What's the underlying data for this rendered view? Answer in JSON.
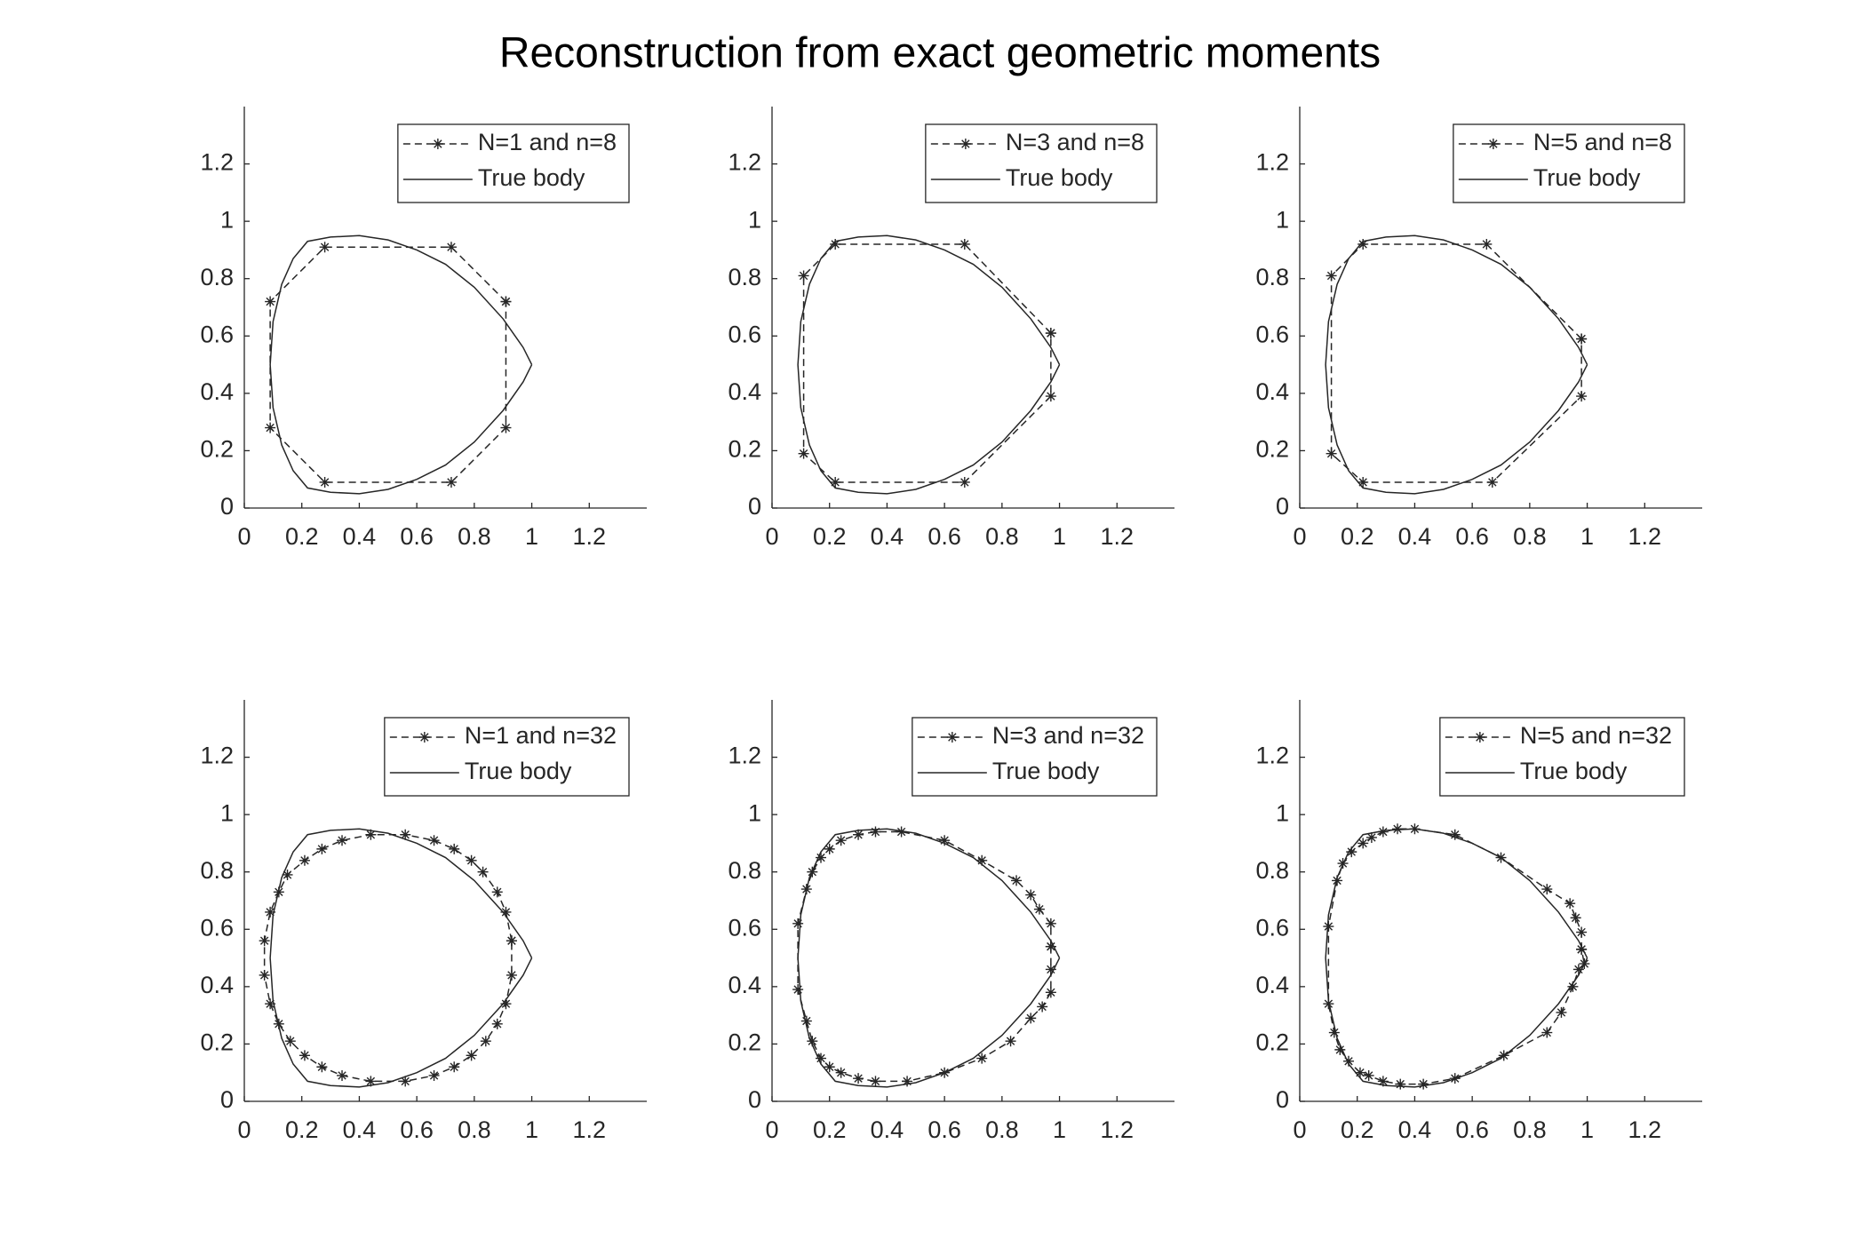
{
  "title": "Reconstruction from exact geometric moments",
  "chart_data": [
    {
      "type": "line",
      "xlim": [
        0,
        1.4
      ],
      "ylim": [
        0,
        1.4
      ],
      "xticks": [
        0,
        0.2,
        0.4,
        0.6,
        0.8,
        1,
        1.2
      ],
      "yticks": [
        0,
        0.2,
        0.4,
        0.6,
        0.8,
        1,
        1.2
      ],
      "legend": "upper right",
      "series": [
        {
          "name": "N=1 and n=8",
          "color": "#262626",
          "line_style": "dashed",
          "marker": "*",
          "x": [
            0.91,
            0.72,
            0.28,
            0.09,
            0.09,
            0.28,
            0.72,
            0.91,
            0.91
          ],
          "values": [
            0.72,
            0.91,
            0.91,
            0.72,
            0.28,
            0.09,
            0.09,
            0.28,
            0.72
          ]
        },
        {
          "name": "True body",
          "color": "#262626",
          "line_style": "solid",
          "x": [
            1,
            0.97,
            0.9,
            0.8,
            0.7,
            0.6,
            0.5,
            0.4,
            0.3,
            0.22,
            0.17,
            0.13,
            0.1,
            0.09,
            0.1,
            0.13,
            0.17,
            0.22,
            0.3,
            0.4,
            0.5,
            0.6,
            0.7,
            0.8,
            0.9,
            0.97,
            1
          ],
          "values": [
            0.5,
            0.56,
            0.66,
            0.77,
            0.85,
            0.9,
            0.935,
            0.95,
            0.945,
            0.93,
            0.87,
            0.78,
            0.65,
            0.5,
            0.35,
            0.22,
            0.13,
            0.07,
            0.055,
            0.05,
            0.065,
            0.1,
            0.15,
            0.23,
            0.34,
            0.44,
            0.5
          ]
        }
      ]
    },
    {
      "type": "line",
      "xlim": [
        0,
        1.4
      ],
      "ylim": [
        0,
        1.4
      ],
      "xticks": [
        0,
        0.2,
        0.4,
        0.6,
        0.8,
        1,
        1.2
      ],
      "yticks": [
        0,
        0.2,
        0.4,
        0.6,
        0.8,
        1,
        1.2
      ],
      "legend": "upper right",
      "series": [
        {
          "name": "N=3 and n=8",
          "color": "#262626",
          "line_style": "dashed",
          "marker": "*",
          "x": [
            0.97,
            0.67,
            0.22,
            0.11,
            0.11,
            0.22,
            0.67,
            0.97,
            0.97
          ],
          "values": [
            0.61,
            0.92,
            0.92,
            0.81,
            0.19,
            0.09,
            0.09,
            0.39,
            0.61
          ]
        },
        {
          "name": "True body",
          "color": "#262626",
          "line_style": "solid",
          "x": [
            1,
            0.97,
            0.9,
            0.8,
            0.7,
            0.6,
            0.5,
            0.4,
            0.3,
            0.22,
            0.17,
            0.13,
            0.1,
            0.09,
            0.1,
            0.13,
            0.17,
            0.22,
            0.3,
            0.4,
            0.5,
            0.6,
            0.7,
            0.8,
            0.9,
            0.97,
            1
          ],
          "values": [
            0.5,
            0.56,
            0.66,
            0.77,
            0.85,
            0.9,
            0.935,
            0.95,
            0.945,
            0.93,
            0.87,
            0.78,
            0.65,
            0.5,
            0.35,
            0.22,
            0.13,
            0.07,
            0.055,
            0.05,
            0.065,
            0.1,
            0.15,
            0.23,
            0.34,
            0.44,
            0.5
          ]
        }
      ]
    },
    {
      "type": "line",
      "xlim": [
        0,
        1.4
      ],
      "ylim": [
        0,
        1.4
      ],
      "xticks": [
        0,
        0.2,
        0.4,
        0.6,
        0.8,
        1,
        1.2
      ],
      "yticks": [
        0,
        0.2,
        0.4,
        0.6,
        0.8,
        1,
        1.2
      ],
      "legend": "upper right",
      "series": [
        {
          "name": "N=5 and n=8",
          "color": "#262626",
          "line_style": "dashed",
          "marker": "*",
          "x": [
            0.98,
            0.65,
            0.22,
            0.11,
            0.11,
            0.22,
            0.67,
            0.98,
            0.98
          ],
          "values": [
            0.59,
            0.92,
            0.92,
            0.81,
            0.19,
            0.09,
            0.09,
            0.39,
            0.59
          ]
        },
        {
          "name": "True body",
          "color": "#262626",
          "line_style": "solid",
          "x": [
            1,
            0.97,
            0.9,
            0.8,
            0.7,
            0.6,
            0.5,
            0.4,
            0.3,
            0.22,
            0.17,
            0.13,
            0.1,
            0.09,
            0.1,
            0.13,
            0.17,
            0.22,
            0.3,
            0.4,
            0.5,
            0.6,
            0.7,
            0.8,
            0.9,
            0.97,
            1
          ],
          "values": [
            0.5,
            0.56,
            0.66,
            0.77,
            0.85,
            0.9,
            0.935,
            0.95,
            0.945,
            0.93,
            0.87,
            0.78,
            0.65,
            0.5,
            0.35,
            0.22,
            0.13,
            0.07,
            0.055,
            0.05,
            0.065,
            0.1,
            0.15,
            0.23,
            0.34,
            0.44,
            0.5
          ]
        }
      ]
    },
    {
      "type": "line",
      "xlim": [
        0,
        1.4
      ],
      "ylim": [
        0,
        1.4
      ],
      "xticks": [
        0,
        0.2,
        0.4,
        0.6,
        0.8,
        1,
        1.2
      ],
      "yticks": [
        0,
        0.2,
        0.4,
        0.6,
        0.8,
        1,
        1.2
      ],
      "legend": "upper right",
      "series": [
        {
          "name": "N=1 and n=32",
          "color": "#262626",
          "line_style": "dashed",
          "marker": "*",
          "x": [
            0.93,
            0.91,
            0.88,
            0.83,
            0.79,
            0.73,
            0.66,
            0.56,
            0.44,
            0.34,
            0.27,
            0.21,
            0.15,
            0.12,
            0.09,
            0.07,
            0.07,
            0.09,
            0.12,
            0.16,
            0.21,
            0.27,
            0.34,
            0.44,
            0.56,
            0.66,
            0.73,
            0.79,
            0.84,
            0.88,
            0.91,
            0.93,
            0.93
          ],
          "values": [
            0.56,
            0.66,
            0.73,
            0.8,
            0.84,
            0.88,
            0.91,
            0.93,
            0.93,
            0.91,
            0.88,
            0.84,
            0.79,
            0.73,
            0.66,
            0.56,
            0.44,
            0.34,
            0.27,
            0.21,
            0.16,
            0.12,
            0.09,
            0.07,
            0.07,
            0.09,
            0.12,
            0.16,
            0.21,
            0.27,
            0.34,
            0.44,
            0.56
          ]
        },
        {
          "name": "True body",
          "color": "#262626",
          "line_style": "solid",
          "x": [
            1,
            0.97,
            0.9,
            0.8,
            0.7,
            0.6,
            0.5,
            0.4,
            0.3,
            0.22,
            0.17,
            0.13,
            0.1,
            0.09,
            0.1,
            0.13,
            0.17,
            0.22,
            0.3,
            0.4,
            0.5,
            0.6,
            0.7,
            0.8,
            0.9,
            0.97,
            1
          ],
          "values": [
            0.5,
            0.56,
            0.66,
            0.77,
            0.85,
            0.9,
            0.935,
            0.95,
            0.945,
            0.93,
            0.87,
            0.78,
            0.65,
            0.5,
            0.35,
            0.22,
            0.13,
            0.07,
            0.055,
            0.05,
            0.065,
            0.1,
            0.15,
            0.23,
            0.34,
            0.44,
            0.5
          ]
        }
      ]
    },
    {
      "type": "line",
      "xlim": [
        0,
        1.4
      ],
      "ylim": [
        0,
        1.4
      ],
      "xticks": [
        0,
        0.2,
        0.4,
        0.6,
        0.8,
        1,
        1.2
      ],
      "yticks": [
        0,
        0.2,
        0.4,
        0.6,
        0.8,
        1,
        1.2
      ],
      "legend": "upper right",
      "series": [
        {
          "name": "N=3 and n=32",
          "color": "#262626",
          "line_style": "dashed",
          "marker": "*",
          "x": [
            0.97,
            0.97,
            0.93,
            0.9,
            0.85,
            0.73,
            0.6,
            0.45,
            0.36,
            0.3,
            0.24,
            0.2,
            0.17,
            0.14,
            0.12,
            0.09,
            0.09,
            0.12,
            0.14,
            0.17,
            0.2,
            0.24,
            0.3,
            0.36,
            0.47,
            0.6,
            0.73,
            0.83,
            0.9,
            0.94,
            0.97,
            0.97,
            0.97
          ],
          "values": [
            0.54,
            0.62,
            0.67,
            0.72,
            0.77,
            0.84,
            0.91,
            0.94,
            0.94,
            0.93,
            0.91,
            0.88,
            0.85,
            0.8,
            0.74,
            0.62,
            0.39,
            0.28,
            0.21,
            0.15,
            0.12,
            0.1,
            0.08,
            0.07,
            0.07,
            0.1,
            0.15,
            0.21,
            0.29,
            0.33,
            0.38,
            0.46,
            0.54
          ]
        },
        {
          "name": "True body",
          "color": "#262626",
          "line_style": "solid",
          "x": [
            1,
            0.97,
            0.9,
            0.8,
            0.7,
            0.6,
            0.5,
            0.4,
            0.3,
            0.22,
            0.17,
            0.13,
            0.1,
            0.09,
            0.1,
            0.13,
            0.17,
            0.22,
            0.3,
            0.4,
            0.5,
            0.6,
            0.7,
            0.8,
            0.9,
            0.97,
            1
          ],
          "values": [
            0.5,
            0.56,
            0.66,
            0.77,
            0.85,
            0.9,
            0.935,
            0.95,
            0.945,
            0.93,
            0.87,
            0.78,
            0.65,
            0.5,
            0.35,
            0.22,
            0.13,
            0.07,
            0.055,
            0.05,
            0.065,
            0.1,
            0.15,
            0.23,
            0.34,
            0.44,
            0.5
          ]
        }
      ]
    },
    {
      "type": "line",
      "xlim": [
        0,
        1.4
      ],
      "ylim": [
        0,
        1.4
      ],
      "xticks": [
        0,
        0.2,
        0.4,
        0.6,
        0.8,
        1,
        1.2
      ],
      "yticks": [
        0,
        0.2,
        0.4,
        0.6,
        0.8,
        1,
        1.2
      ],
      "legend": "upper right",
      "series": [
        {
          "name": "N=5 and n=32",
          "color": "#262626",
          "line_style": "dashed",
          "marker": "*",
          "x": [
            0.98,
            0.98,
            0.96,
            0.94,
            0.86,
            0.7,
            0.54,
            0.4,
            0.34,
            0.29,
            0.25,
            0.22,
            0.18,
            0.15,
            0.13,
            0.1,
            0.1,
            0.12,
            0.14,
            0.17,
            0.21,
            0.24,
            0.29,
            0.35,
            0.43,
            0.54,
            0.71,
            0.86,
            0.91,
            0.95,
            0.97,
            0.99,
            0.98
          ],
          "values": [
            0.53,
            0.59,
            0.64,
            0.69,
            0.74,
            0.85,
            0.93,
            0.95,
            0.95,
            0.94,
            0.92,
            0.9,
            0.87,
            0.83,
            0.77,
            0.61,
            0.34,
            0.24,
            0.18,
            0.14,
            0.1,
            0.09,
            0.07,
            0.06,
            0.06,
            0.08,
            0.16,
            0.24,
            0.31,
            0.4,
            0.46,
            0.48,
            0.53
          ]
        },
        {
          "name": "True body",
          "color": "#262626",
          "line_style": "solid",
          "x": [
            1,
            0.97,
            0.9,
            0.8,
            0.7,
            0.6,
            0.5,
            0.4,
            0.3,
            0.22,
            0.17,
            0.13,
            0.1,
            0.09,
            0.1,
            0.13,
            0.17,
            0.22,
            0.3,
            0.4,
            0.5,
            0.6,
            0.7,
            0.8,
            0.9,
            0.97,
            1
          ],
          "values": [
            0.5,
            0.56,
            0.66,
            0.77,
            0.85,
            0.9,
            0.935,
            0.95,
            0.945,
            0.93,
            0.87,
            0.78,
            0.65,
            0.5,
            0.35,
            0.22,
            0.13,
            0.07,
            0.055,
            0.05,
            0.065,
            0.1,
            0.15,
            0.23,
            0.34,
            0.44,
            0.5
          ]
        }
      ]
    }
  ]
}
